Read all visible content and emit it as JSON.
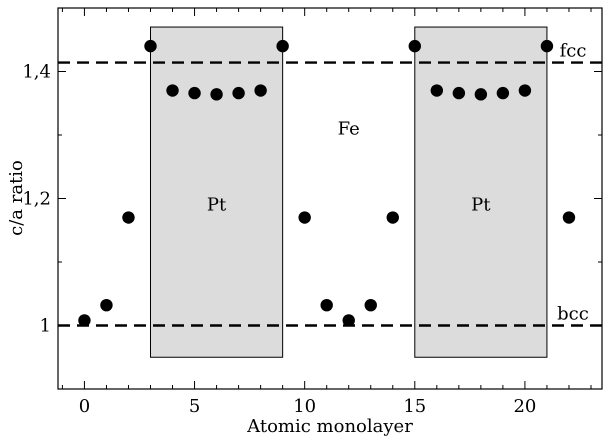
{
  "chart_data": {
    "type": "scatter",
    "title": "",
    "xlabel": "Atomic monolayer",
    "ylabel": "c/a ratio",
    "xlim": [
      -1.2,
      23.5
    ],
    "ylim": [
      0.9,
      1.5
    ],
    "x_ticks": [
      0,
      5,
      10,
      15,
      20
    ],
    "x_tick_labels": [
      "0",
      "5",
      "10",
      "15",
      "20"
    ],
    "y_ticks": [
      1.0,
      1.2,
      1.4
    ],
    "y_tick_labels": [
      "1",
      "1,2",
      "1,4"
    ],
    "grid": false,
    "legend": "none",
    "series": [
      {
        "points": [
          {
            "x": 0,
            "y": 1.008
          },
          {
            "x": 1,
            "y": 1.032
          },
          {
            "x": 2,
            "y": 1.17
          },
          {
            "x": 3,
            "y": 1.44
          },
          {
            "x": 4,
            "y": 1.37
          },
          {
            "x": 5,
            "y": 1.366
          },
          {
            "x": 6,
            "y": 1.364
          },
          {
            "x": 7,
            "y": 1.366
          },
          {
            "x": 8,
            "y": 1.37
          },
          {
            "x": 9,
            "y": 1.44
          },
          {
            "x": 10,
            "y": 1.17
          },
          {
            "x": 11,
            "y": 1.032
          },
          {
            "x": 12,
            "y": 1.008
          },
          {
            "x": 13,
            "y": 1.032
          },
          {
            "x": 14,
            "y": 1.17
          },
          {
            "x": 15,
            "y": 1.44
          },
          {
            "x": 16,
            "y": 1.37
          },
          {
            "x": 17,
            "y": 1.366
          },
          {
            "x": 18,
            "y": 1.364
          },
          {
            "x": 19,
            "y": 1.366
          },
          {
            "x": 20,
            "y": 1.37
          },
          {
            "x": 21,
            "y": 1.44
          },
          {
            "x": 22,
            "y": 1.17
          }
        ]
      }
    ],
    "reference_lines": [
      {
        "label": "fcc",
        "y": 1.414
      },
      {
        "label": "bcc",
        "y": 1.0
      }
    ],
    "regions": [
      {
        "label": "Pt",
        "x": [
          3,
          9
        ],
        "y": [
          0.95,
          1.47
        ],
        "fill": "#dcdcdc"
      },
      {
        "label": "Pt",
        "x": [
          15,
          21
        ],
        "y": [
          0.95,
          1.47
        ],
        "fill": "#dcdcdc"
      }
    ],
    "annotations": [
      {
        "text": "Fe",
        "x": 12,
        "y": 1.31
      }
    ]
  }
}
